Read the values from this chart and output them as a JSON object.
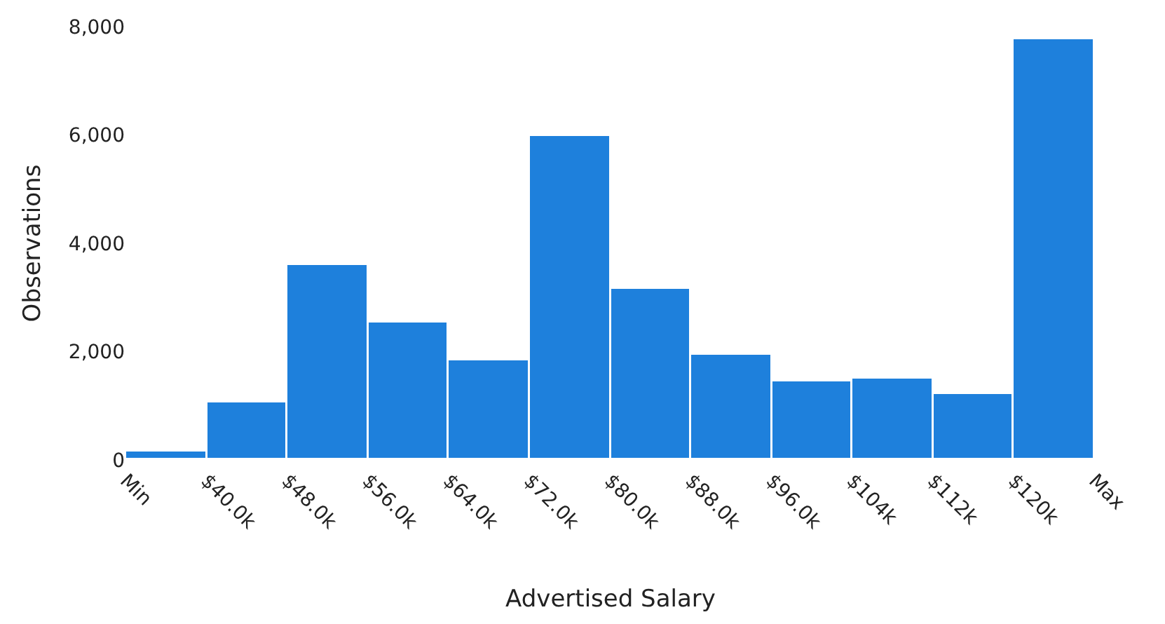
{
  "chart_data": {
    "type": "histogram",
    "xlabel": "Advertised Salary",
    "ylabel": "Observations",
    "bins": [
      32,
      40,
      48,
      56,
      64,
      72,
      80,
      88,
      96,
      104,
      112,
      120,
      128
    ],
    "values": [
      150,
      1050,
      3590,
      2540,
      1850,
      5990,
      3170,
      1930,
      1460,
      1490,
      1210,
      7760
    ],
    "color": "#1e80dc",
    "xlim": [
      32,
      128
    ],
    "xticks": [
      {
        "value": 32,
        "label": "Min"
      },
      {
        "value": 40,
        "label": "$40.0k"
      },
      {
        "value": 48,
        "label": "$48.0k"
      },
      {
        "value": 56,
        "label": "$56.0k"
      },
      {
        "value": 64,
        "label": "$64.0k"
      },
      {
        "value": 72,
        "label": "$72.0k"
      },
      {
        "value": 80,
        "label": "$80.0k"
      },
      {
        "value": 88,
        "label": "$88.0k"
      },
      {
        "value": 96,
        "label": "$96.0k"
      },
      {
        "value": 104,
        "label": "$104k"
      },
      {
        "value": 112,
        "label": "$112k"
      },
      {
        "value": 120,
        "label": "$120k"
      },
      {
        "value": 128,
        "label": "Max"
      }
    ],
    "ylim": [
      0,
      8000
    ],
    "grid": false,
    "legend": false,
    "yticks": [
      {
        "value": 0,
        "label": "0"
      },
      {
        "value": 2000,
        "label": "2,000"
      },
      {
        "value": 4000,
        "label": "4,000"
      },
      {
        "value": 6000,
        "label": "6,000"
      },
      {
        "value": 8000,
        "label": "8,000"
      }
    ]
  }
}
